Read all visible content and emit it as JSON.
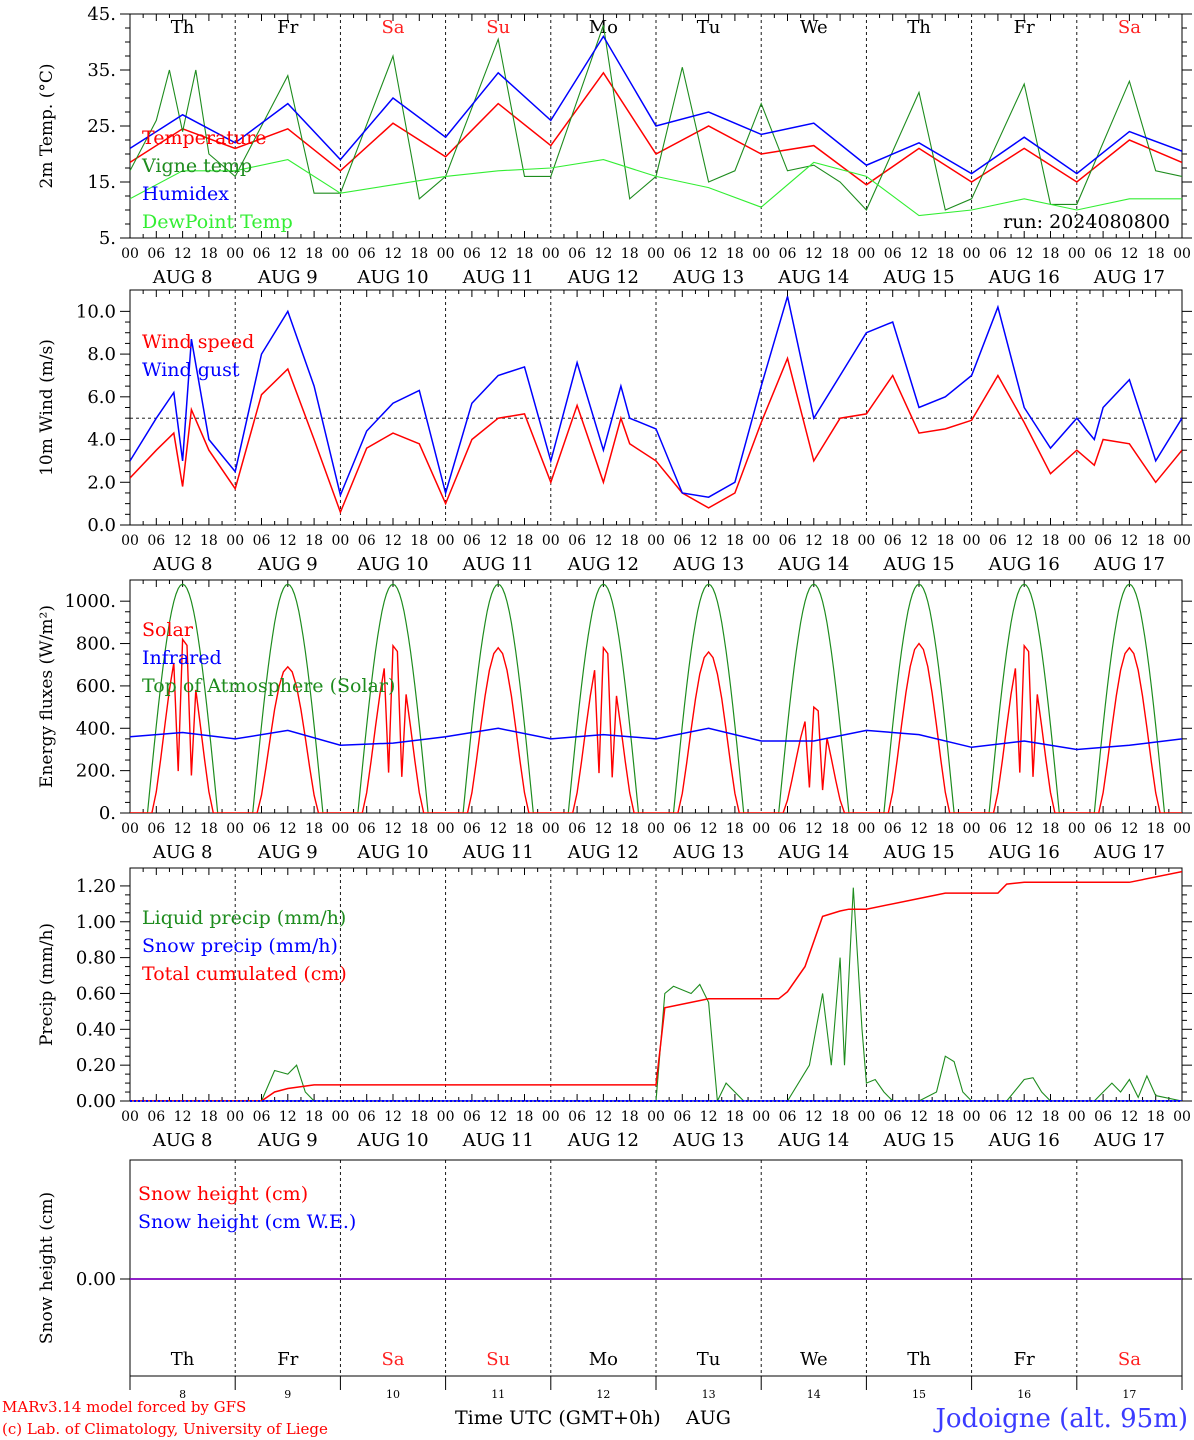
{
  "run_label": "run: 2024080800",
  "footer": {
    "model": "MARv3.14 model forced by GFS",
    "copyright": "(c) Lab. of Climatology, University of Liege",
    "x_title": "Time UTC (GMT+0h)",
    "x_month": "AUG",
    "station": "Jodoigne (alt. 95m)"
  },
  "colors": {
    "red": "#ff0000",
    "green": "#1e8c1e",
    "blue": "#0000ff",
    "lightgreen": "#33ee33",
    "purple": "#8000c0",
    "weekend": "#ff2020"
  },
  "days": {
    "dow": [
      "Th",
      "Fr",
      "Sa",
      "Su",
      "Mo",
      "Tu",
      "We",
      "Th",
      "Fr",
      "Sa"
    ],
    "weekend": [
      false,
      false,
      true,
      true,
      false,
      false,
      false,
      false,
      false,
      true
    ],
    "labels": [
      "AUG  8",
      "AUG  9",
      "AUG 10",
      "AUG 11",
      "AUG 12",
      "AUG 13",
      "AUG 14",
      "AUG 15",
      "AUG 16",
      "AUG 17"
    ],
    "numbers": [
      "8",
      "9",
      "10",
      "11",
      "12",
      "13",
      "14",
      "15",
      "16",
      "17"
    ],
    "hour_labels": [
      "00",
      "06",
      "12",
      "18"
    ],
    "final_hour": "00"
  },
  "chart_data": [
    {
      "type": "line",
      "ylabel": "2m Temp. (°C)",
      "ylim": [
        5,
        45
      ],
      "yticks": [
        "5.",
        "15.",
        "25.",
        "35.",
        "45."
      ],
      "x_unit": "hours since AUG 8 00 UTC",
      "legend": [
        "Temperature",
        "Vigne temp",
        "Humidex",
        "DewPoint Temp"
      ],
      "series": [
        {
          "name": "Temperature",
          "color": "red",
          "x": [
            0,
            12,
            24,
            36,
            48,
            60,
            72,
            84,
            96,
            108,
            120,
            132,
            144,
            156,
            168,
            180,
            192,
            204,
            216,
            228,
            240
          ],
          "y": [
            18.5,
            24.5,
            21,
            24.5,
            17,
            25.5,
            19.5,
            29,
            21.5,
            34.5,
            20,
            25,
            20,
            21.5,
            14.5,
            21,
            15,
            21,
            15,
            22.5,
            18.5
          ]
        },
        {
          "name": "Vigne temp",
          "color": "green",
          "x": [
            0,
            6,
            9,
            12,
            15,
            18,
            24,
            36,
            42,
            48,
            60,
            66,
            72,
            84,
            90,
            96,
            108,
            114,
            120,
            126,
            132,
            138,
            144,
            150,
            156,
            162,
            168,
            180,
            186,
            192,
            204,
            210,
            216,
            228,
            234,
            240
          ],
          "y": [
            17,
            26,
            35,
            24,
            35,
            20,
            16,
            34,
            13,
            13,
            37.5,
            12,
            16,
            40.5,
            16,
            16,
            43,
            12,
            16,
            35.5,
            15,
            17,
            29,
            17,
            18,
            15,
            10,
            31,
            10,
            12,
            32.5,
            11,
            11,
            33,
            17,
            16
          ]
        },
        {
          "name": "Humidex",
          "color": "blue",
          "x": [
            0,
            12,
            24,
            36,
            48,
            60,
            72,
            84,
            96,
            108,
            120,
            132,
            144,
            156,
            168,
            180,
            192,
            204,
            216,
            228,
            240
          ],
          "y": [
            21,
            27,
            22,
            29,
            19,
            30,
            23,
            34.5,
            26,
            41,
            25,
            27.5,
            23.5,
            25.5,
            18,
            22,
            16.5,
            23,
            16.5,
            24,
            20.5
          ]
        },
        {
          "name": "DewPoint Temp",
          "color": "lightgreen",
          "x": [
            0,
            12,
            24,
            36,
            48,
            60,
            72,
            84,
            96,
            108,
            120,
            132,
            144,
            156,
            168,
            180,
            192,
            204,
            216,
            228,
            240
          ],
          "y": [
            12,
            17,
            17,
            19,
            13,
            14.5,
            16,
            17,
            17.5,
            19,
            16,
            14,
            10.5,
            18.5,
            16,
            9,
            10,
            12,
            10,
            12,
            12
          ]
        }
      ]
    },
    {
      "type": "line",
      "ylabel": "10m Wind (m/s)",
      "ylim": [
        0,
        11
      ],
      "yticks": [
        "0.0",
        "2.0",
        "4.0",
        "6.0",
        "8.0",
        "10.0"
      ],
      "reference_line": 5.0,
      "legend": [
        "Wind speed",
        "Wind gust"
      ],
      "series": [
        {
          "name": "Wind speed",
          "color": "red",
          "x": [
            0,
            6,
            10,
            12,
            14,
            18,
            24,
            30,
            36,
            42,
            48,
            54,
            60,
            66,
            72,
            78,
            84,
            90,
            96,
            102,
            108,
            112,
            114,
            120,
            126,
            132,
            138,
            144,
            150,
            156,
            162,
            168,
            174,
            180,
            186,
            192,
            198,
            204,
            210,
            216,
            220,
            222,
            228,
            234,
            240
          ],
          "y": [
            2.2,
            3.5,
            4.3,
            1.8,
            5.4,
            3.5,
            1.7,
            6.1,
            7.3,
            4.0,
            0.6,
            3.6,
            4.3,
            3.8,
            1.0,
            4.0,
            5.0,
            5.2,
            2.0,
            5.6,
            2.0,
            5.0,
            3.8,
            3.0,
            1.5,
            0.8,
            1.5,
            4.8,
            7.8,
            3.0,
            5.0,
            5.2,
            7.0,
            4.3,
            4.5,
            4.9,
            7.0,
            4.8,
            2.4,
            3.5,
            2.8,
            4.0,
            3.8,
            2.0,
            3.5
          ]
        },
        {
          "name": "Wind gust",
          "color": "blue",
          "x": [
            0,
            6,
            10,
            12,
            14,
            18,
            24,
            30,
            36,
            42,
            48,
            54,
            60,
            66,
            72,
            78,
            84,
            90,
            96,
            102,
            108,
            112,
            114,
            120,
            126,
            132,
            138,
            144,
            150,
            156,
            162,
            168,
            174,
            180,
            186,
            192,
            198,
            204,
            210,
            216,
            220,
            222,
            228,
            234,
            240
          ],
          "y": [
            3.0,
            5.0,
            6.2,
            3.0,
            8.7,
            4.0,
            2.5,
            8.0,
            10.0,
            6.5,
            1.4,
            4.4,
            5.7,
            6.3,
            1.5,
            5.7,
            7.0,
            7.4,
            3.0,
            7.6,
            3.5,
            6.5,
            5.0,
            4.5,
            1.5,
            1.3,
            2.0,
            6.5,
            10.7,
            5.0,
            7.0,
            9.0,
            9.5,
            5.5,
            6.0,
            7.0,
            10.2,
            5.5,
            3.6,
            5.0,
            4.0,
            5.5,
            6.8,
            3.0,
            5.0
          ]
        }
      ]
    },
    {
      "type": "line",
      "ylabel": "Energy fluxes (W/m²)",
      "ylim": [
        0,
        1100
      ],
      "yticks": [
        "0.",
        "200.",
        "400.",
        "600.",
        "800.",
        "1000."
      ],
      "legend": [
        "Solar",
        "Infrared",
        "Top of Atmosphere (Solar)"
      ],
      "solar_peaks": [
        820,
        690,
        790,
        780,
        780,
        760,
        500,
        800,
        790,
        780
      ],
      "toa_peak": 1080,
      "series": [
        {
          "name": "Infrared",
          "color": "blue",
          "x": [
            0,
            12,
            24,
            36,
            48,
            60,
            72,
            84,
            96,
            108,
            120,
            132,
            144,
            156,
            168,
            180,
            192,
            204,
            216,
            228,
            240
          ],
          "y": [
            360,
            380,
            350,
            390,
            320,
            330,
            360,
            400,
            350,
            370,
            350,
            400,
            340,
            340,
            390,
            370,
            310,
            340,
            300,
            320,
            350
          ]
        }
      ]
    },
    {
      "type": "line",
      "ylabel": "Precip (mm/h)",
      "ylim": [
        0,
        1.3
      ],
      "yticks": [
        "0.00",
        "0.20",
        "0.40",
        "0.60",
        "0.80",
        "1.00",
        "1.20"
      ],
      "legend": [
        "Liquid precip (mm/h)",
        "Snow precip (mm/h)",
        "Total cumulated (cm)"
      ],
      "series": [
        {
          "name": "Liquid precip (mm/h)",
          "color": "green",
          "x": [
            0,
            30,
            33,
            36,
            38,
            40,
            42,
            120,
            122,
            124,
            126,
            128,
            130,
            132,
            134,
            136,
            140,
            150,
            155,
            158,
            160,
            162,
            163,
            165,
            167,
            168,
            170,
            172,
            174,
            180,
            184,
            186,
            188,
            190,
            192,
            200,
            204,
            206,
            208,
            210,
            220,
            224,
            226,
            228,
            230,
            232,
            234,
            240
          ],
          "y": [
            0,
            0,
            0.17,
            0.15,
            0.2,
            0.05,
            0,
            0,
            0.6,
            0.64,
            0.62,
            0.6,
            0.65,
            0.55,
            0.0,
            0.1,
            0,
            0,
            0.2,
            0.6,
            0.2,
            0.8,
            0.2,
            1.19,
            0.4,
            0.1,
            0.12,
            0.05,
            0,
            0,
            0.05,
            0.25,
            0.22,
            0.05,
            0,
            0,
            0.12,
            0.13,
            0.05,
            0,
            0,
            0.1,
            0.05,
            0.12,
            0.02,
            0.14,
            0.03,
            0
          ]
        },
        {
          "name": "Snow precip (mm/h)",
          "color": "blue",
          "x": [
            0,
            240
          ],
          "y": [
            0,
            0
          ]
        },
        {
          "name": "Total cumulated (cm)",
          "color": "red",
          "x": [
            0,
            30,
            33,
            36,
            42,
            108,
            116,
            120,
            122,
            132,
            138,
            144,
            148,
            150,
            154,
            158,
            162,
            164,
            168,
            180,
            186,
            190,
            198,
            200,
            204,
            228,
            240
          ],
          "y": [
            0,
            0,
            0.05,
            0.07,
            0.09,
            0.09,
            0.09,
            0.09,
            0.52,
            0.57,
            0.57,
            0.57,
            0.57,
            0.61,
            0.75,
            1.03,
            1.06,
            1.07,
            1.07,
            1.13,
            1.16,
            1.16,
            1.16,
            1.21,
            1.22,
            1.22,
            1.28
          ]
        }
      ]
    },
    {
      "type": "line",
      "ylabel": "Snow height (cm)",
      "yticks": [
        "0.00"
      ],
      "legend": [
        "Snow height (cm)",
        "Snow height (cm W.E.)"
      ],
      "series": [
        {
          "name": "Snow height (cm)",
          "color": "red",
          "x": [
            0,
            240
          ],
          "y": [
            0,
            0
          ]
        },
        {
          "name": "Snow height (cm W.E.)",
          "color": "blue",
          "x": [
            0,
            240
          ],
          "y": [
            0,
            0
          ]
        }
      ]
    }
  ]
}
